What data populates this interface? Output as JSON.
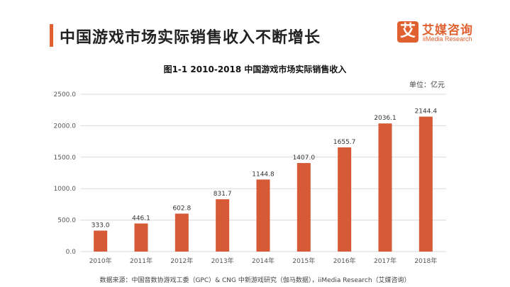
{
  "header": {
    "title": "中国游戏市场实际销售收入不断增长",
    "logo_mark": "艾",
    "logo_name": "艾媒咨询",
    "logo_sub": "iiMedia Research"
  },
  "colors": {
    "accent": "#e0612f",
    "bar": "#d65a36",
    "grid": "#d9d9d9"
  },
  "chart_data": {
    "type": "bar",
    "title": "图1-1 2010-2018 中国游戏市场实际销售收入",
    "unit": "单位：亿元",
    "categories": [
      "2010年",
      "2011年",
      "2012年",
      "2013年",
      "2014年",
      "2015年",
      "2016年",
      "2017年",
      "2018年"
    ],
    "values": [
      333.0,
      446.1,
      602.8,
      831.7,
      1144.8,
      1407.0,
      1655.7,
      2036.1,
      2144.4
    ],
    "value_labels": [
      "333.0",
      "446.1",
      "602.8",
      "831.7",
      "1144.8",
      "1407.0",
      "1655.7",
      "2036.1",
      "2144.4"
    ],
    "yticks": [
      "0.0",
      "500.0",
      "1000.0",
      "1500.0",
      "2000.0",
      "2500.0"
    ],
    "ylim": [
      0,
      2500
    ],
    "grid": true
  },
  "footer": {
    "source": "数据来源：中国音数协游戏工委（GPC）& CNG 中新游戏研究（伽马数据），iiMedia Research（艾媒咨询）"
  }
}
